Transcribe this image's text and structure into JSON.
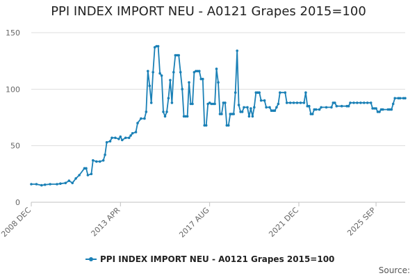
{
  "chart_data": {
    "type": "line",
    "title": "PPI INDEX IMPORT NEU - A0121 Grapes 2015=100",
    "xlabel": "",
    "ylabel": "",
    "ylim": [
      0,
      150
    ],
    "yticks": [
      0,
      50,
      100,
      150
    ],
    "grid": "horizontal",
    "legend_position": "bottom",
    "xtick_labels": [
      {
        "label": "2008 DEC",
        "x": 2008.917
      },
      {
        "label": "2013 APR",
        "x": 2013.25
      },
      {
        "label": "2017 AUG",
        "x": 2017.583
      },
      {
        "label": "2021 DEC",
        "x": 2021.917
      },
      {
        "label": "2025 SEP",
        "x": 2025.667
      }
    ],
    "series": [
      {
        "name": "PPI INDEX IMPORT NEU - A0121 Grapes 2015=100",
        "color": "#1a80b6",
        "points": [
          [
            2008.917,
            16
          ],
          [
            2009.167,
            16
          ],
          [
            2009.417,
            15
          ],
          [
            2009.583,
            15.5
          ],
          [
            2009.833,
            16
          ],
          [
            2010.167,
            16
          ],
          [
            2010.333,
            16.5
          ],
          [
            2010.583,
            17
          ],
          [
            2010.75,
            19
          ],
          [
            2010.917,
            17
          ],
          [
            2011.083,
            21
          ],
          [
            2011.25,
            24
          ],
          [
            2011.5,
            30
          ],
          [
            2011.583,
            30
          ],
          [
            2011.667,
            24
          ],
          [
            2011.833,
            25
          ],
          [
            2011.917,
            37
          ],
          [
            2012.083,
            36
          ],
          [
            2012.25,
            36
          ],
          [
            2012.417,
            37
          ],
          [
            2012.5,
            42
          ],
          [
            2012.583,
            53
          ],
          [
            2012.75,
            54
          ],
          [
            2012.833,
            57
          ],
          [
            2013.0,
            57
          ],
          [
            2013.167,
            56
          ],
          [
            2013.25,
            58
          ],
          [
            2013.333,
            55
          ],
          [
            2013.5,
            57
          ],
          [
            2013.667,
            57
          ],
          [
            2013.75,
            59
          ],
          [
            2013.833,
            61
          ],
          [
            2014.0,
            62
          ],
          [
            2014.083,
            70
          ],
          [
            2014.25,
            74
          ],
          [
            2014.417,
            74
          ],
          [
            2014.5,
            80
          ],
          [
            2014.583,
            116
          ],
          [
            2014.667,
            103
          ],
          [
            2014.75,
            88
          ],
          [
            2014.833,
            115
          ],
          [
            2014.917,
            137
          ],
          [
            2015.0,
            138
          ],
          [
            2015.083,
            138
          ],
          [
            2015.167,
            114
          ],
          [
            2015.25,
            112
          ],
          [
            2015.333,
            80
          ],
          [
            2015.417,
            76
          ],
          [
            2015.5,
            80
          ],
          [
            2015.583,
            92
          ],
          [
            2015.667,
            108
          ],
          [
            2015.75,
            88
          ],
          [
            2015.833,
            115
          ],
          [
            2015.917,
            130
          ],
          [
            2016.0,
            130
          ],
          [
            2016.083,
            130
          ],
          [
            2016.167,
            115
          ],
          [
            2016.25,
            100
          ],
          [
            2016.333,
            76
          ],
          [
            2016.417,
            76
          ],
          [
            2016.5,
            76
          ],
          [
            2016.583,
            106
          ],
          [
            2016.667,
            87
          ],
          [
            2016.75,
            87
          ],
          [
            2016.833,
            115
          ],
          [
            2016.917,
            116
          ],
          [
            2017.0,
            116
          ],
          [
            2017.083,
            116
          ],
          [
            2017.167,
            109
          ],
          [
            2017.25,
            109
          ],
          [
            2017.333,
            68
          ],
          [
            2017.417,
            68
          ],
          [
            2017.5,
            87
          ],
          [
            2017.583,
            88
          ],
          [
            2017.667,
            87
          ],
          [
            2017.75,
            87
          ],
          [
            2017.833,
            87
          ],
          [
            2017.917,
            118
          ],
          [
            2018.0,
            106
          ],
          [
            2018.083,
            78
          ],
          [
            2018.167,
            78
          ],
          [
            2018.25,
            88
          ],
          [
            2018.333,
            88
          ],
          [
            2018.417,
            68
          ],
          [
            2018.5,
            68
          ],
          [
            2018.583,
            78
          ],
          [
            2018.667,
            78
          ],
          [
            2018.75,
            78
          ],
          [
            2018.833,
            97
          ],
          [
            2018.917,
            134
          ],
          [
            2019.0,
            86
          ],
          [
            2019.083,
            80
          ],
          [
            2019.167,
            80
          ],
          [
            2019.25,
            84
          ],
          [
            2019.417,
            84
          ],
          [
            2019.5,
            76
          ],
          [
            2019.583,
            83
          ],
          [
            2019.667,
            76
          ],
          [
            2019.75,
            84
          ],
          [
            2019.833,
            97
          ],
          [
            2019.917,
            97
          ],
          [
            2020.0,
            97
          ],
          [
            2020.083,
            90
          ],
          [
            2020.25,
            90
          ],
          [
            2020.333,
            84
          ],
          [
            2020.5,
            84
          ],
          [
            2020.583,
            81
          ],
          [
            2020.667,
            81
          ],
          [
            2020.75,
            81
          ],
          [
            2020.833,
            84
          ],
          [
            2020.917,
            87
          ],
          [
            2021.0,
            97
          ],
          [
            2021.25,
            97
          ],
          [
            2021.333,
            88
          ],
          [
            2021.5,
            88
          ],
          [
            2021.667,
            88
          ],
          [
            2021.833,
            88
          ],
          [
            2022.0,
            88
          ],
          [
            2022.167,
            88
          ],
          [
            2022.25,
            97
          ],
          [
            2022.333,
            85
          ],
          [
            2022.417,
            85
          ],
          [
            2022.5,
            78
          ],
          [
            2022.583,
            78
          ],
          [
            2022.667,
            82
          ],
          [
            2022.75,
            82
          ],
          [
            2022.917,
            82
          ],
          [
            2023.0,
            84
          ],
          [
            2023.25,
            84
          ],
          [
            2023.5,
            84
          ],
          [
            2023.583,
            88
          ],
          [
            2023.667,
            88
          ],
          [
            2023.75,
            85
          ],
          [
            2024.0,
            85
          ],
          [
            2024.25,
            85
          ],
          [
            2024.333,
            85
          ],
          [
            2024.417,
            88
          ],
          [
            2024.583,
            88
          ],
          [
            2024.75,
            88
          ],
          [
            2024.917,
            88
          ],
          [
            2025.083,
            88
          ],
          [
            2025.25,
            88
          ],
          [
            2025.417,
            88
          ],
          [
            2025.5,
            83
          ],
          [
            2025.583,
            83
          ],
          [
            2025.667,
            83
          ],
          [
            2025.75,
            80
          ],
          [
            2025.833,
            80
          ],
          [
            2025.917,
            82
          ],
          [
            2026.0,
            82
          ],
          [
            2026.25,
            82
          ],
          [
            2026.333,
            82
          ],
          [
            2026.417,
            82
          ],
          [
            2026.5,
            87
          ],
          [
            2026.583,
            92
          ],
          [
            2026.75,
            92
          ],
          [
            2026.833,
            92
          ],
          [
            2027.0,
            92
          ],
          [
            2027.083,
            92
          ]
        ]
      }
    ]
  },
  "legend": {
    "label": "PPI INDEX IMPORT NEU - A0121 Grapes 2015=100"
  },
  "footer": {
    "source_label": "Source:"
  }
}
